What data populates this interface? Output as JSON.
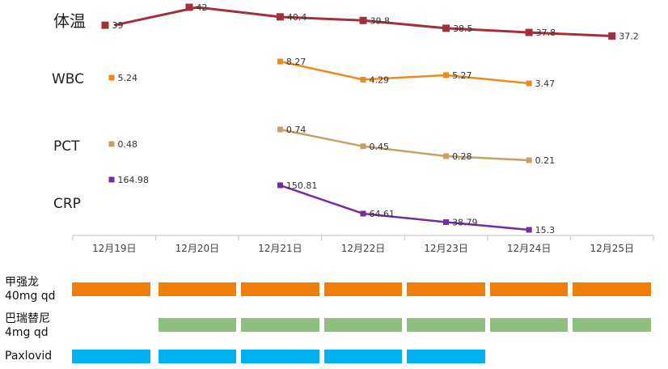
{
  "chart_data": {
    "type": "line",
    "categories": [
      "12月19日",
      "12月20日",
      "12月21日",
      "12月22日",
      "12月23日",
      "12月24日",
      "12月25日"
    ],
    "series": [
      {
        "name": "体温",
        "color": "#a0303a",
        "points": [
          {
            "day": 0,
            "value": 39
          },
          {
            "day": 1,
            "value": 42
          },
          {
            "day": 2,
            "value": 40.4
          },
          {
            "day": 3,
            "value": 39.8
          },
          {
            "day": 4,
            "value": 38.5
          },
          {
            "day": 5,
            "value": 37.8
          },
          {
            "day": 6,
            "value": 37.2
          }
        ],
        "labels": [
          "39",
          "42",
          "40.4",
          "39.8",
          "38.5",
          "37.8",
          "37.2"
        ]
      },
      {
        "name": "WBC",
        "color": "#ee8a1c",
        "points": [
          {
            "day": 0,
            "value": 5.24
          },
          {
            "day": 2,
            "value": 8.27
          },
          {
            "day": 3,
            "value": 4.29
          },
          {
            "day": 4,
            "value": 5.27
          },
          {
            "day": 5,
            "value": 3.47
          }
        ],
        "labels": [
          "5.24",
          "8.27",
          "4.29",
          "5.27",
          "3.47"
        ]
      },
      {
        "name": "PCT",
        "color": "#c8a064",
        "points": [
          {
            "day": 0,
            "value": 0.48
          },
          {
            "day": 2,
            "value": 0.74
          },
          {
            "day": 3,
            "value": 0.45
          },
          {
            "day": 4,
            "value": 0.28
          },
          {
            "day": 5,
            "value": 0.21
          }
        ],
        "labels": [
          "0.48",
          "0.74",
          "0.45",
          "0.28",
          "0.21"
        ]
      },
      {
        "name": "CRP",
        "color": "#7030a0",
        "points": [
          {
            "day": 0,
            "value": 164.98
          },
          {
            "day": 2,
            "value": 150.81
          },
          {
            "day": 3,
            "value": 64.61
          },
          {
            "day": 4,
            "value": 38.79
          },
          {
            "day": 5,
            "value": 15.3
          }
        ],
        "labels": [
          "164.98",
          "150.81",
          "64.61",
          "38.79",
          "15.3"
        ]
      }
    ]
  },
  "medications": [
    {
      "label_line1": "甲强龙",
      "label_line2": "40mg qd",
      "color": "#f07f09",
      "days": [
        0,
        1,
        2,
        3,
        4,
        5,
        6
      ]
    },
    {
      "label_line1": "巴瑞替尼",
      "label_line2": "4mg qd",
      "color": "#8fbf7e",
      "days": [
        1,
        2,
        3,
        4,
        5,
        6
      ]
    },
    {
      "label_line1": "Paxlovid",
      "label_line2": "",
      "color": "#00b0f0",
      "days": [
        0,
        1,
        2,
        3,
        4
      ]
    }
  ]
}
